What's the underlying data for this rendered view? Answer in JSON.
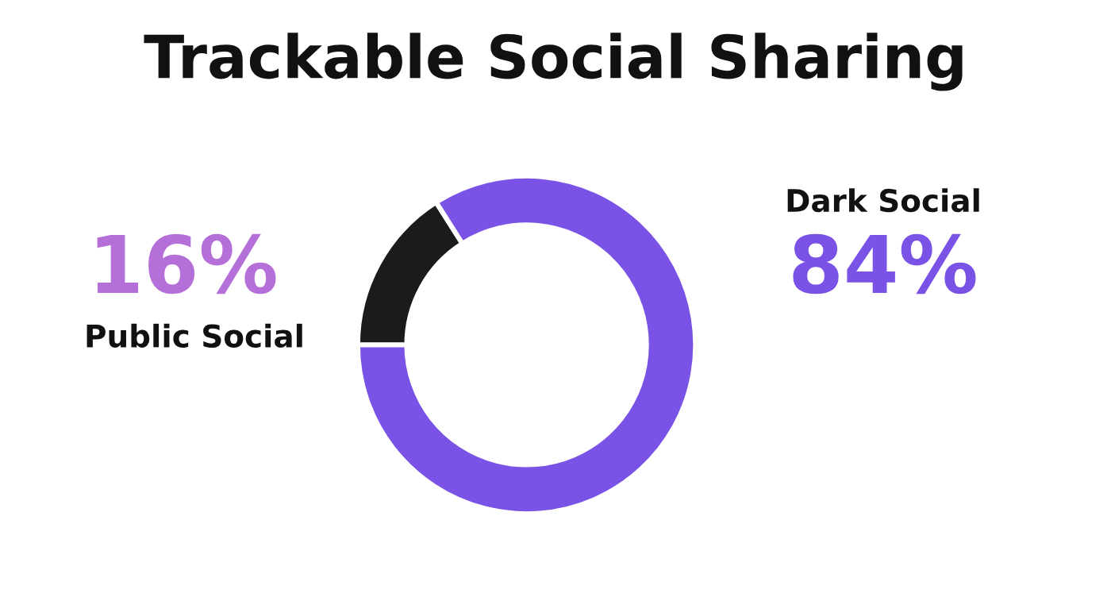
{
  "chart_data": {
    "type": "donut",
    "title": "Trackable Social Sharing",
    "categories": [
      "Public Social",
      "Dark Social"
    ],
    "values": [
      16,
      84
    ],
    "colors": [
      "#1b1b1b",
      "#7b52e6"
    ],
    "value_labels": [
      "16%",
      "84%"
    ]
  }
}
